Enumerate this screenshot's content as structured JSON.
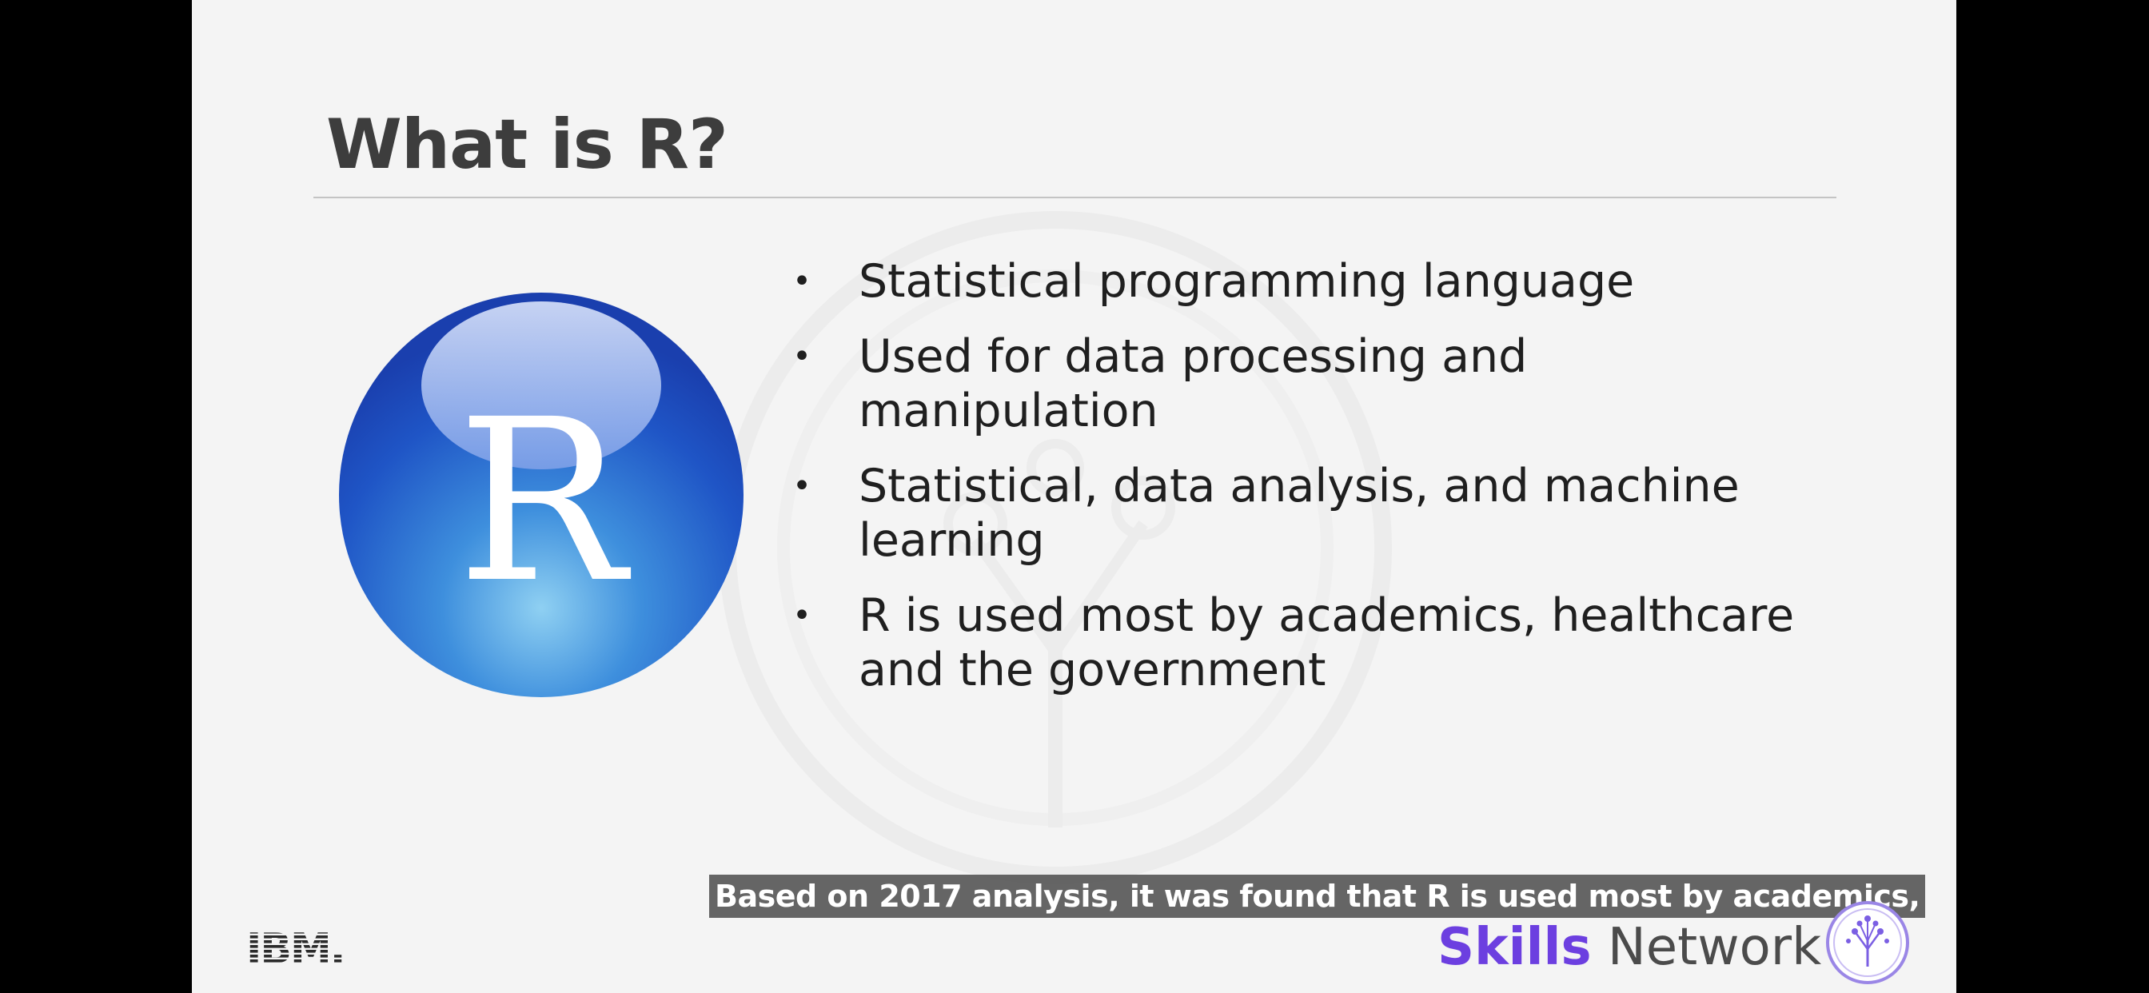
{
  "slide": {
    "title": "What is R?",
    "logo_letter": "R",
    "bullets": [
      {
        "lines": [
          "Statistical programming language"
        ]
      },
      {
        "lines": [
          "Used for data processing and",
          "manipulation"
        ]
      },
      {
        "lines": [
          "Statistical, data analysis, and machine",
          "learning"
        ]
      },
      {
        "lines": [
          "R is used most by academics, healthcare",
          "and the government"
        ]
      }
    ],
    "bullet_glyph": "•"
  },
  "caption": {
    "text": "Based on 2017 analysis, it was found that R is used most by academics,"
  },
  "branding": {
    "ibm_text": "IBM.",
    "skills_word": "Skills",
    "network_word": "Network",
    "skills_color": "#6c3fe0",
    "icon": "skills-network-tree-icon"
  },
  "colors": {
    "slide_background": "#f4f4f4",
    "title_color": "#3d3d3d",
    "logo_blue": "#1e47b8"
  }
}
